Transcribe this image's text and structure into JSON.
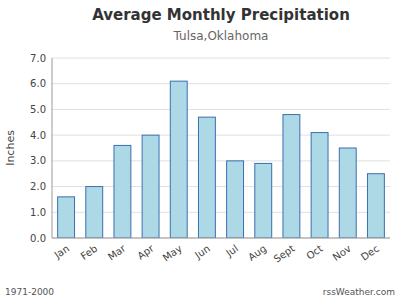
{
  "chart_data": {
    "type": "bar",
    "title": "Average Monthly Precipitation",
    "subtitle": "Tulsa,Oklahoma",
    "ylabel": "Inches",
    "categories": [
      "Jan",
      "Feb",
      "Mar",
      "Apr",
      "May",
      "Jun",
      "Jul",
      "Aug",
      "Sept",
      "Oct",
      "Nov",
      "Dec"
    ],
    "values": [
      1.6,
      2.0,
      3.6,
      4.0,
      6.1,
      4.7,
      3.0,
      2.9,
      4.8,
      4.1,
      3.5,
      2.5
    ],
    "color": "#add8e6",
    "ylim": [
      0.0,
      7.0
    ],
    "yticks": [
      {
        "value": 0.0,
        "label": "0.0"
      },
      {
        "value": 1.0,
        "label": "1.0"
      },
      {
        "value": 2.0,
        "label": "2.0"
      },
      {
        "value": 3.0,
        "label": "3.0"
      },
      {
        "value": 4.0,
        "label": "4.0"
      },
      {
        "value": 5.0,
        "label": "5.0"
      },
      {
        "value": 6.0,
        "label": "6.0"
      },
      {
        "value": 7.0,
        "label": "7.0"
      }
    ],
    "grid": true,
    "annotations": [
      "1971-2000",
      "rssWeather.com"
    ]
  }
}
